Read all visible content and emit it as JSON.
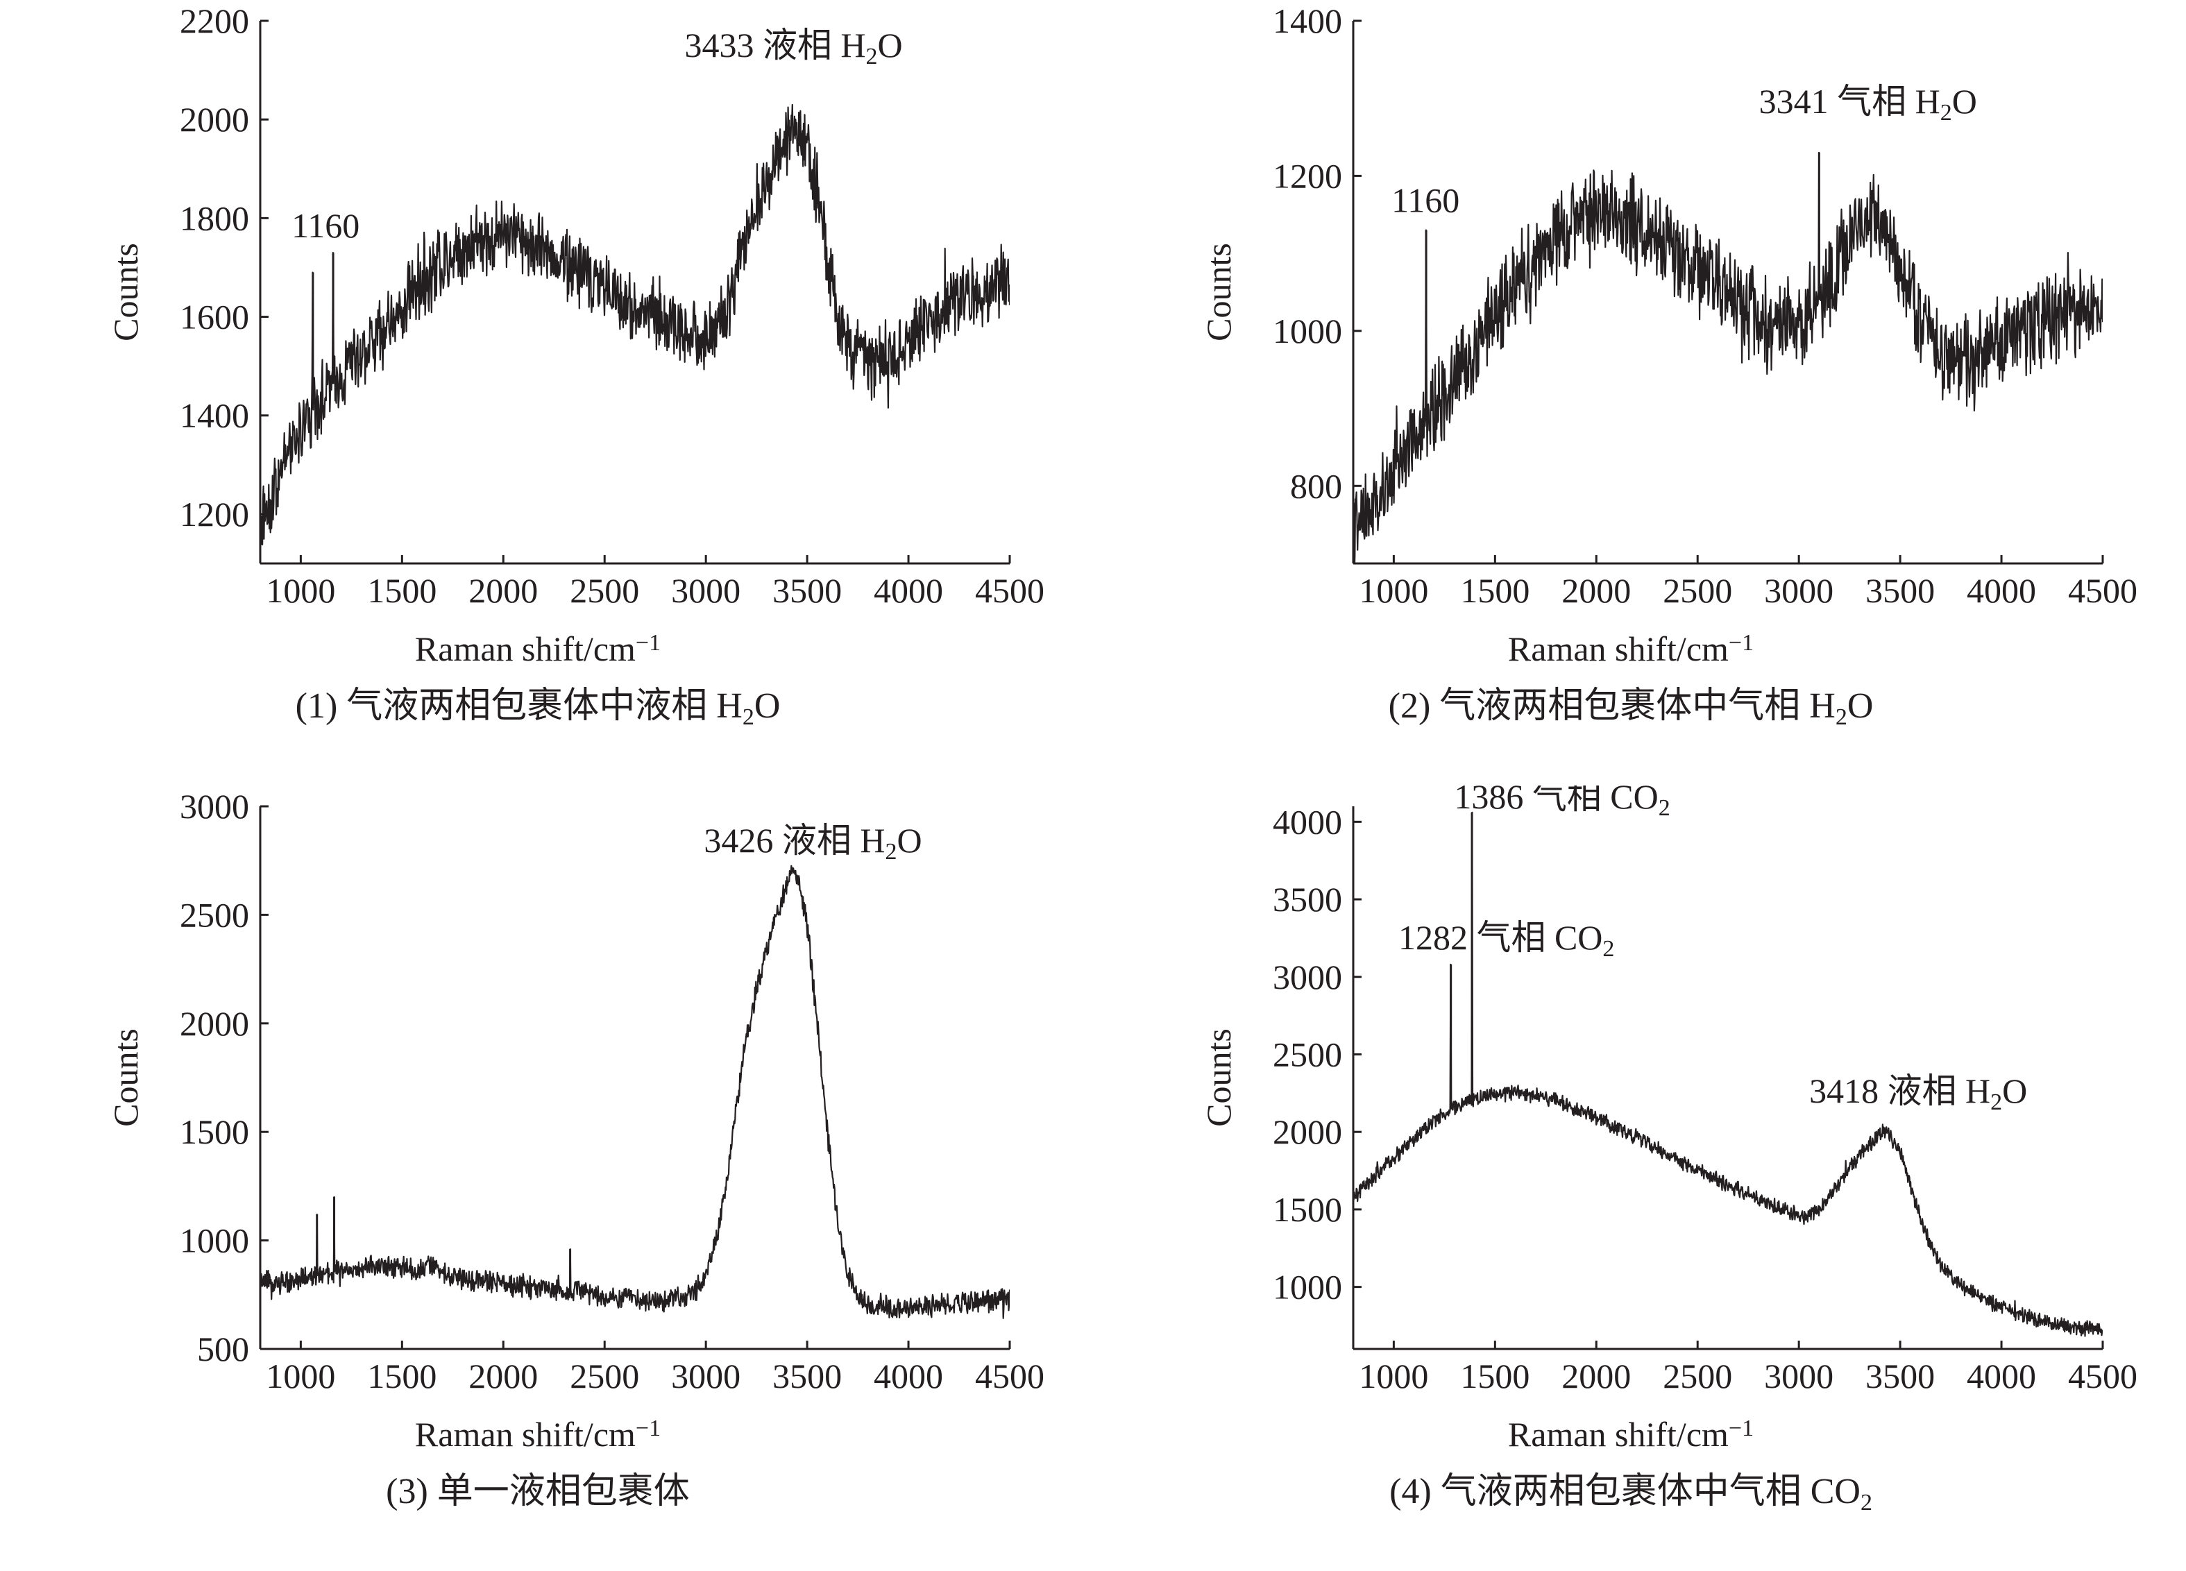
{
  "chart_data": [
    {
      "id": "panel-1",
      "type": "line",
      "caption": "(1) 气液两相包裹体中液相 H₂O",
      "xlabel": "Raman shift/cm⁻¹",
      "ylabel": "Counts",
      "xlim": [
        800,
        4500
      ],
      "ylim": [
        1100,
        2200
      ],
      "xticks": [
        1000,
        1500,
        2000,
        2500,
        3000,
        3500,
        4000,
        4500
      ],
      "yticks": [
        1200,
        1400,
        1600,
        1800,
        2000,
        2200
      ],
      "noise": 55,
      "series": [
        {
          "x": [
            800,
            900,
            1000,
            1100,
            1200,
            1300,
            1400,
            1500,
            1600,
            1700,
            1800,
            1900,
            2000,
            2100,
            2200,
            2300,
            2400,
            2500,
            2600,
            2700,
            2800,
            2900,
            3000,
            3100,
            3200,
            3300,
            3350,
            3400,
            3433,
            3480,
            3550,
            3600,
            3650,
            3700,
            3750,
            3800,
            3900,
            4000,
            4100,
            4200,
            4300,
            4400,
            4500
          ],
          "y": [
            1180,
            1280,
            1370,
            1440,
            1480,
            1530,
            1570,
            1620,
            1670,
            1710,
            1740,
            1760,
            1770,
            1760,
            1740,
            1710,
            1690,
            1660,
            1630,
            1610,
            1590,
            1570,
            1560,
            1600,
            1760,
            1880,
            1930,
            1970,
            1990,
            1960,
            1850,
            1720,
            1600,
            1540,
            1520,
            1510,
            1520,
            1550,
            1590,
            1620,
            1640,
            1660,
            1690
          ]
        }
      ],
      "spikes": [
        {
          "x": 1060,
          "y": 1690
        },
        {
          "x": 1160,
          "y": 1730
        }
      ],
      "annotations": [
        {
          "label": "1160",
          "x": 1160,
          "y": 1730
        },
        {
          "label": "3433 液相 H₂O",
          "x": 3433,
          "y": 2110
        }
      ]
    },
    {
      "id": "panel-2",
      "type": "line",
      "caption": "(2) 气液两相包裹体中气相 H₂O",
      "xlabel": "Raman shift/cm⁻¹",
      "ylabel": "Counts",
      "xlim": [
        800,
        4500
      ],
      "ylim": [
        700,
        1400
      ],
      "xticks": [
        1000,
        1500,
        2000,
        2500,
        3000,
        3500,
        4000,
        4500
      ],
      "yticks": [
        800,
        1000,
        1200,
        1400
      ],
      "noise": 45,
      "series": [
        {
          "x": [
            800,
            900,
            1000,
            1100,
            1200,
            1300,
            1400,
            1500,
            1600,
            1700,
            1800,
            1900,
            2000,
            2100,
            2200,
            2300,
            2400,
            2500,
            2600,
            2700,
            2800,
            2900,
            3000,
            3100,
            3200,
            3300,
            3341,
            3400,
            3450,
            3500,
            3600,
            3700,
            3800,
            3900,
            4000,
            4100,
            4200,
            4300,
            4400,
            4500
          ],
          "y": [
            740,
            770,
            810,
            860,
            900,
            940,
            980,
            1020,
            1060,
            1090,
            1120,
            1140,
            1150,
            1150,
            1140,
            1120,
            1100,
            1080,
            1060,
            1040,
            1020,
            1010,
            1010,
            1040,
            1090,
            1140,
            1150,
            1150,
            1120,
            1080,
            1020,
            970,
            960,
            980,
            990,
            1000,
            1010,
            1020,
            1030,
            1040
          ]
        }
      ],
      "spikes": [
        {
          "x": 1160,
          "y": 1130
        },
        {
          "x": 3100,
          "y": 1230
        }
      ],
      "annotations": [
        {
          "label": "1160",
          "x": 1160,
          "y": 1130
        },
        {
          "label": "3341 气相 H₂O",
          "x": 3341,
          "y": 1270
        }
      ]
    },
    {
      "id": "panel-3",
      "type": "line",
      "caption": "(3) 单一液相包裹体",
      "xlabel": "Raman shift/cm⁻¹",
      "ylabel": "Counts",
      "xlim": [
        800,
        4500
      ],
      "ylim": [
        500,
        3000
      ],
      "xticks": [
        1000,
        1500,
        2000,
        2500,
        3000,
        3500,
        4000,
        4500
      ],
      "yticks": [
        500,
        1000,
        1500,
        2000,
        2500,
        3000
      ],
      "noise": 40,
      "series": [
        {
          "x": [
            800,
            900,
            1000,
            1100,
            1200,
            1300,
            1400,
            1500,
            1600,
            1650,
            1700,
            1800,
            1900,
            2000,
            2100,
            2200,
            2300,
            2400,
            2500,
            2600,
            2700,
            2800,
            2900,
            2950,
            3000,
            3050,
            3100,
            3150,
            3200,
            3250,
            3300,
            3350,
            3400,
            3426,
            3460,
            3500,
            3550,
            3600,
            3650,
            3700,
            3750,
            3800,
            3900,
            4000,
            4100,
            4200,
            4300,
            4400,
            4500
          ],
          "y": [
            800,
            810,
            820,
            840,
            860,
            880,
            880,
            870,
            860,
            900,
            850,
            820,
            810,
            800,
            790,
            780,
            770,
            760,
            750,
            740,
            730,
            720,
            730,
            760,
            850,
            1000,
            1250,
            1600,
            1950,
            2150,
            2350,
            2500,
            2650,
            2700,
            2650,
            2450,
            2000,
            1500,
            1100,
            850,
            730,
            700,
            690,
            690,
            700,
            710,
            715,
            720,
            730
          ]
        }
      ],
      "spikes": [
        {
          "x": 1080,
          "y": 1120
        },
        {
          "x": 1165,
          "y": 1200
        },
        {
          "x": 2330,
          "y": 960
        }
      ],
      "annotations": [
        {
          "label": "3426 液相 H₂O",
          "x": 3426,
          "y": 2750
        }
      ]
    },
    {
      "id": "panel-4",
      "type": "line",
      "caption": "(4) 气液两相包裹体中气相 CO₂",
      "xlabel": "Raman shift/cm⁻¹",
      "ylabel": "Counts",
      "xlim": [
        800,
        4500
      ],
      "ylim": [
        600,
        4100
      ],
      "xticks": [
        1000,
        1500,
        2000,
        2500,
        3000,
        3500,
        4000,
        4500
      ],
      "yticks": [
        1000,
        1500,
        2000,
        2500,
        3000,
        3500,
        4000
      ],
      "noise": 38,
      "series": [
        {
          "x": [
            800,
            900,
            1000,
            1100,
            1200,
            1300,
            1400,
            1500,
            1600,
            1700,
            1800,
            1900,
            2000,
            2100,
            2200,
            2300,
            2400,
            2500,
            2600,
            2700,
            2800,
            2900,
            3000,
            3050,
            3100,
            3200,
            3300,
            3400,
            3418,
            3450,
            3500,
            3550,
            3600,
            3650,
            3700,
            3800,
            3900,
            4000,
            4100,
            4200,
            4300,
            4400,
            4500
          ],
          "y": [
            1580,
            1700,
            1830,
            1960,
            2080,
            2160,
            2210,
            2240,
            2250,
            2240,
            2200,
            2150,
            2090,
            2030,
            1960,
            1890,
            1820,
            1750,
            1690,
            1630,
            1570,
            1510,
            1460,
            1450,
            1500,
            1670,
            1850,
            1990,
            2010,
            1980,
            1870,
            1660,
            1450,
            1270,
            1130,
            1000,
            930,
            870,
            820,
            780,
            750,
            730,
            720
          ]
        }
      ],
      "spikes": [
        {
          "x": 1282,
          "y": 3080
        },
        {
          "x": 1386,
          "y": 4060
        }
      ],
      "annotations": [
        {
          "label": "1386 气相 CO₂",
          "x": 1386,
          "y": 4060
        },
        {
          "label": "1282 气相 CO₂",
          "x": 1282,
          "y": 3080
        },
        {
          "label": "3418 液相 H₂O",
          "x": 3418,
          "y": 2010
        }
      ]
    }
  ]
}
